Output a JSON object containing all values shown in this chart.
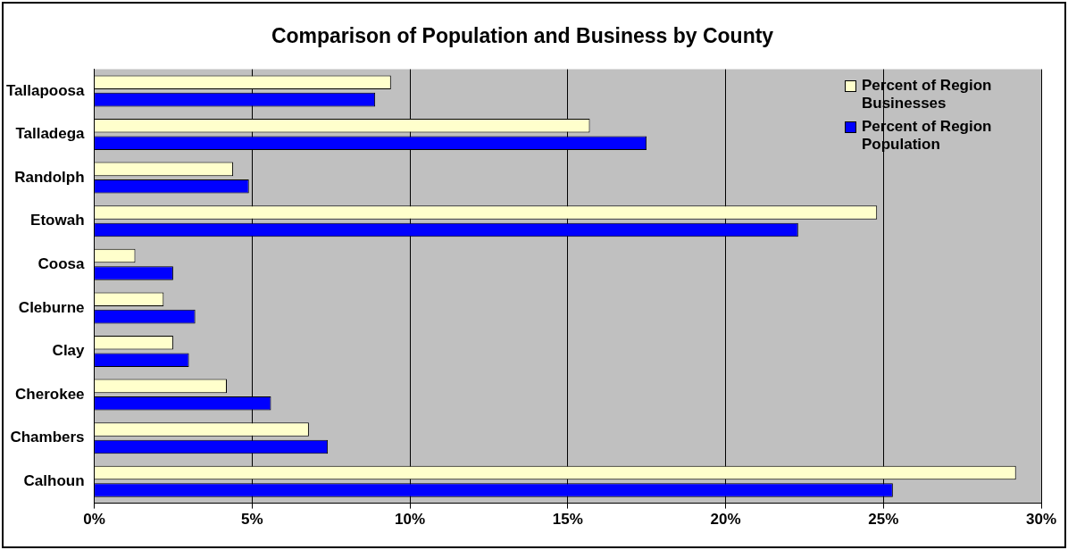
{
  "chart_data": {
    "type": "bar",
    "orientation": "horizontal",
    "title": "Comparison of Population and Business by County",
    "categories": [
      "Tallapoosa",
      "Talladega",
      "Randolph",
      "Etowah",
      "Coosa",
      "Cleburne",
      "Clay",
      "Cherokee",
      "Chambers",
      "Calhoun"
    ],
    "series": [
      {
        "name": "Percent of Region Businesses",
        "color": "#ffffcc",
        "values": [
          9.4,
          15.7,
          4.4,
          24.8,
          1.3,
          2.2,
          2.5,
          4.2,
          6.8,
          29.2
        ]
      },
      {
        "name": "Percent of Region Population",
        "color": "#0000ff",
        "values": [
          8.9,
          17.5,
          4.9,
          22.3,
          2.5,
          3.2,
          3.0,
          5.6,
          7.4,
          25.3
        ]
      }
    ],
    "xlim": [
      0,
      30
    ],
    "xticks": [
      {
        "value": 0,
        "label": "0%"
      },
      {
        "value": 5,
        "label": "5%"
      },
      {
        "value": 10,
        "label": "10%"
      },
      {
        "value": 15,
        "label": "15%"
      },
      {
        "value": 20,
        "label": "20%"
      },
      {
        "value": 25,
        "label": "25%"
      },
      {
        "value": 30,
        "label": "30%"
      }
    ],
    "grid": "x",
    "legend": "top right"
  }
}
